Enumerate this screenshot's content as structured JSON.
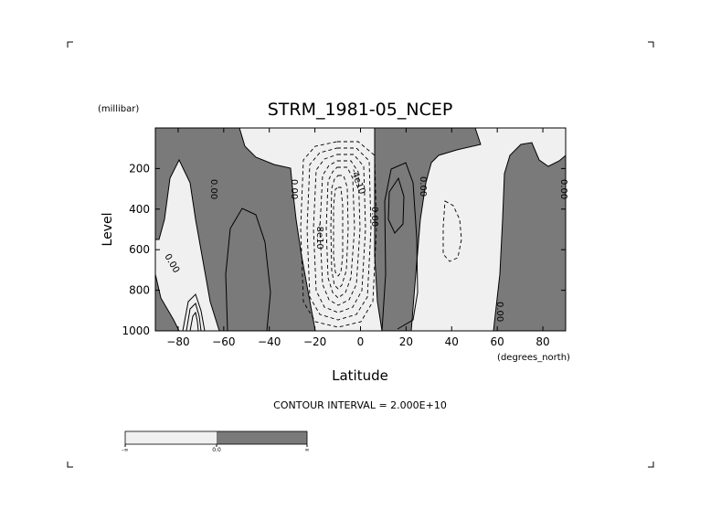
{
  "chart_data": {
    "type": "contour",
    "title": "STRM_1981-05_NCEP",
    "xlabel": "Latitude",
    "xunit": "(degrees_north)",
    "ylabel": "Level",
    "yunit": "(millibar)",
    "xlim": [
      -90,
      90
    ],
    "ylim": [
      1000,
      0
    ],
    "x_ticks": [
      -80,
      -60,
      -40,
      -20,
      0,
      20,
      40,
      60,
      80
    ],
    "y_ticks": [
      200,
      400,
      600,
      800,
      1000
    ],
    "contour_interval_text": "CONTOUR INTERVAL = 2.000E+10",
    "contour_labels": [
      "0.00",
      "0.00",
      "0.00",
      "0.00",
      "0.00",
      "0.00",
      "0.00",
      "-4e10",
      "-8e10"
    ],
    "colorbar": {
      "labels": [
        "-∞",
        "0.0",
        "∞"
      ],
      "colors": [
        "#f0f0f0",
        "#7a7a7a"
      ]
    },
    "colors": {
      "positive": "#7a7a7a",
      "negative": "#f0f0f0"
    }
  }
}
